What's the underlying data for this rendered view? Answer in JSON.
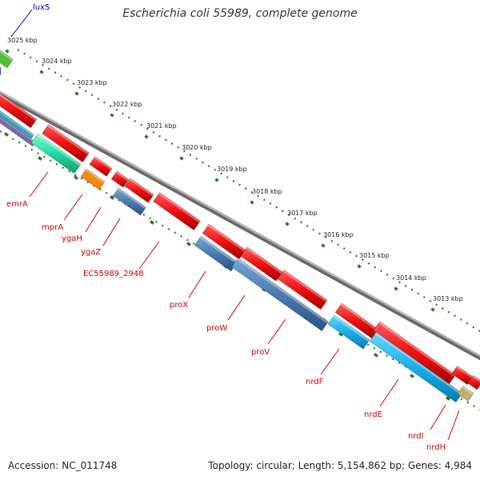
{
  "title": "Escherichia coli 55989, complete genome",
  "footer": {
    "accession": "Accession: NC_011748",
    "summary": "Topology: circular; Length: 5,154,862 bp; Genes: 4,984"
  },
  "colors": {
    "gene_label": "#cc0000",
    "outside_label": "#0000cc",
    "tick": "#2a7a2a",
    "backbone": "#888888",
    "forward_gene": "#ee1111",
    "reverse_red": "#ee1111",
    "blue_gene": "#4a7bb0",
    "cyan_gene": "#1ab0e8",
    "teal_gene": "#22d8a0",
    "orange_gene": "#f08a10",
    "green_gene": "#4cc032",
    "purple_gene": "#7a6aa8",
    "khaki_gene": "#bdb070"
  },
  "kbp_labels": [
    "3025 kbp",
    "3024 kbp",
    "3023 kbp",
    "3022 kbp",
    "3021 kbp",
    "3020 kbp",
    "3019 kbp",
    "3018 kbp",
    "3017 kbp",
    "3016 kbp",
    "3015 kbp",
    "3014 kbp",
    "3013 kbp"
  ],
  "gene_labels": [
    "emrA",
    "mprA",
    "ygaH",
    "ygaZ",
    "EC55989_2948",
    "proX",
    "proW",
    "proV",
    "nrdF",
    "nrdE",
    "nrdI",
    "nrdH"
  ],
  "top_label": "luxS"
}
